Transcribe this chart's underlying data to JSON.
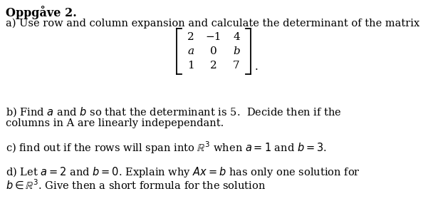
{
  "title": "Oppgåve 2.",
  "line_a": "a) Use row and column expansion and calculate the determinant of the matrix",
  "matrix_rows": [
    [
      "2",
      "−1",
      "4"
    ],
    [
      "a",
      "0",
      "b"
    ],
    [
      "1",
      "2",
      "7"
    ]
  ],
  "matrix_italic": [
    "a",
    "b"
  ],
  "line_b1": "b) Find $a$ and $b$ so that the determinant is 5.  Decide then if the",
  "line_b2": "columns in A are linearly indepependant.",
  "line_c": "c) find out if the rows will span into $\\mathbb{R}^3$ when $a = 1$ and $b = 3$.",
  "line_d1": "d) Let $a = 2$ and $b = 0$. Explain why $Ax = b$ has only one solution for",
  "line_d2": "$b \\in \\mathbb{R}^3$. Give then a short formula for the solution",
  "bg_color": "#ffffff",
  "text_color": "#000000",
  "font_size_title": 11.5,
  "font_size_body": 10.5,
  "font_size_matrix": 11,
  "fig_width": 6.01,
  "fig_height": 3.1,
  "dpi": 100
}
